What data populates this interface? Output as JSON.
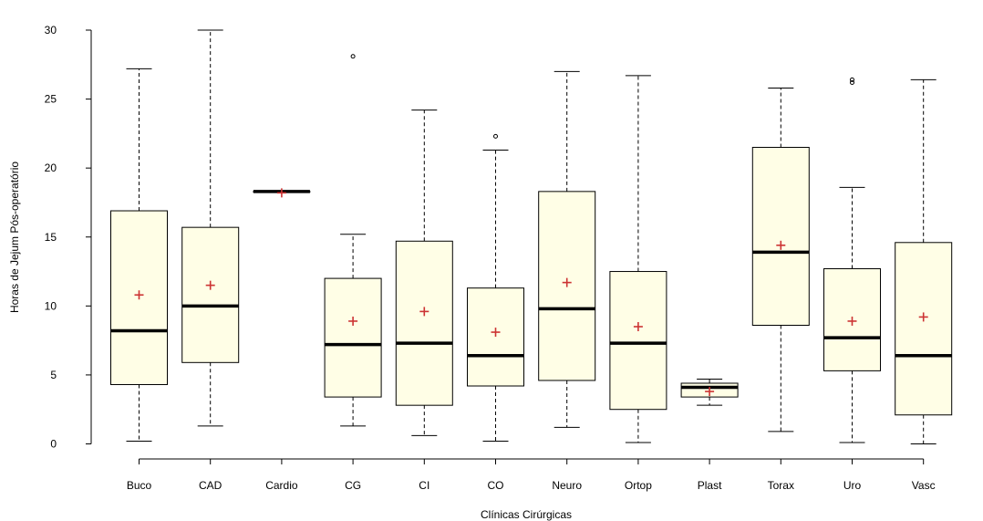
{
  "chart_data": {
    "type": "boxplot",
    "title": "",
    "xlabel": "Clínicas Cirúrgicas",
    "ylabel": "Horas de Jejum Pós-operatório",
    "ylim": [
      -1,
      31
    ],
    "yticks": [
      0,
      5,
      10,
      15,
      20,
      25,
      30
    ],
    "categories": [
      "Buco",
      "CAD",
      "Cardio",
      "CG",
      "CI",
      "CO",
      "Neuro",
      "Ortop",
      "Plast",
      "Torax",
      "Uro",
      "Vasc"
    ],
    "boxes": [
      {
        "min": 0.2,
        "q1": 4.3,
        "median": 8.2,
        "q3": 16.9,
        "max": 27.2,
        "mean": 10.8,
        "outliers": []
      },
      {
        "min": 1.3,
        "q1": 5.9,
        "median": 10.0,
        "q3": 15.7,
        "max": 30.0,
        "mean": 11.5,
        "outliers": []
      },
      {
        "min": 18.3,
        "q1": 18.3,
        "median": 18.3,
        "q3": 18.3,
        "max": 18.3,
        "mean": 18.2,
        "outliers": []
      },
      {
        "min": 1.3,
        "q1": 3.4,
        "median": 7.2,
        "q3": 12.0,
        "max": 15.2,
        "mean": 8.9,
        "outliers": [
          28.1
        ]
      },
      {
        "min": 0.6,
        "q1": 2.8,
        "median": 7.3,
        "q3": 14.7,
        "max": 24.2,
        "mean": 9.6,
        "outliers": []
      },
      {
        "min": 0.2,
        "q1": 4.2,
        "median": 6.4,
        "q3": 11.3,
        "max": 21.3,
        "mean": 8.1,
        "outliers": [
          22.3
        ]
      },
      {
        "min": 1.2,
        "q1": 4.6,
        "median": 9.8,
        "q3": 18.3,
        "max": 27.0,
        "mean": 11.7,
        "outliers": []
      },
      {
        "min": 0.1,
        "q1": 2.5,
        "median": 7.3,
        "q3": 12.5,
        "max": 26.7,
        "mean": 8.5,
        "outliers": []
      },
      {
        "min": 2.8,
        "q1": 3.4,
        "median": 4.1,
        "q3": 4.4,
        "max": 4.7,
        "mean": 3.8,
        "outliers": []
      },
      {
        "min": 0.9,
        "q1": 8.6,
        "median": 13.9,
        "q3": 21.5,
        "max": 25.8,
        "mean": 14.4,
        "outliers": []
      },
      {
        "min": 0.1,
        "q1": 5.3,
        "median": 7.7,
        "q3": 12.7,
        "max": 18.6,
        "mean": 8.9,
        "outliers": [
          26.2,
          26.4
        ]
      },
      {
        "min": 0.0,
        "q1": 2.1,
        "median": 6.4,
        "q3": 14.6,
        "max": 26.4,
        "mean": 9.2,
        "outliers": []
      }
    ],
    "colors": {
      "box_fill": "#fffee6",
      "box_stroke": "#000000",
      "median": "#000000",
      "mean_marker": "#cc3333"
    },
    "mean_marker_icon": "plus-icon",
    "outlier_icon": "circle-icon",
    "grid": false,
    "legend": false
  }
}
